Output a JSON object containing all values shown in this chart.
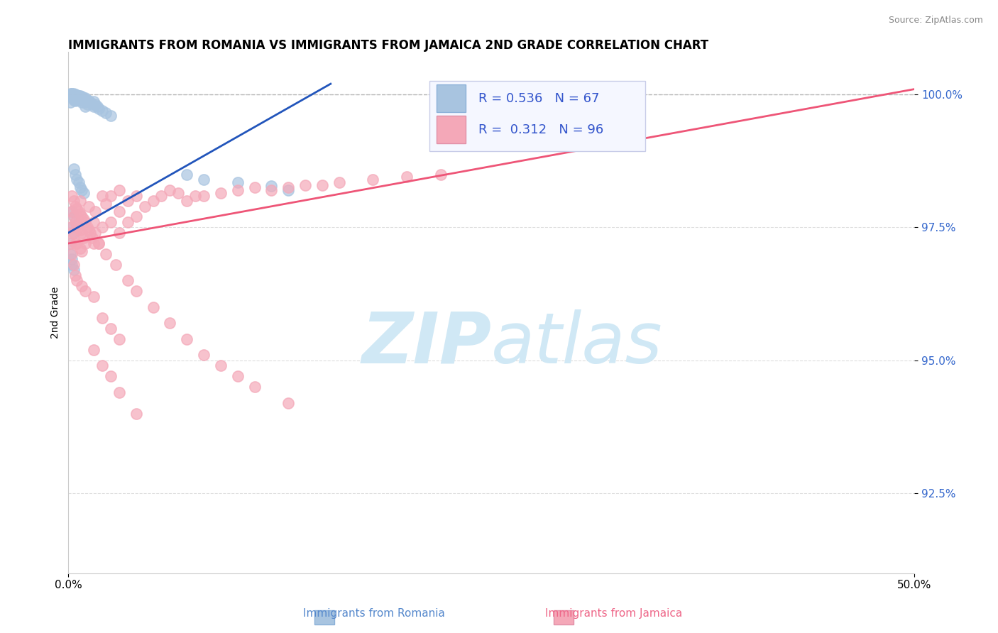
{
  "title": "IMMIGRANTS FROM ROMANIA VS IMMIGRANTS FROM JAMAICA 2ND GRADE CORRELATION CHART",
  "source": "Source: ZipAtlas.com",
  "xlabel_romania": "Immigrants from Romania",
  "xlabel_jamaica": "Immigrants from Jamaica",
  "ylabel": "2nd Grade",
  "xlim": [
    0.0,
    0.5
  ],
  "ylim": [
    0.91,
    1.008
  ],
  "xticks": [
    0.0,
    0.5
  ],
  "xtick_labels": [
    "0.0%",
    "50.0%"
  ],
  "ytick_values": [
    0.925,
    0.95,
    0.975,
    1.0
  ],
  "ytick_labels": [
    "92.5%",
    "95.0%",
    "97.5%",
    "100.0%"
  ],
  "romania_R": 0.536,
  "romania_N": 67,
  "jamaica_R": 0.312,
  "jamaica_N": 96,
  "romania_color": "#a8c4e0",
  "jamaica_color": "#f4a8b8",
  "romania_line_color": "#2255bb",
  "jamaica_line_color": "#ee5577",
  "romania_scatter_x": [
    0.001,
    0.001,
    0.001,
    0.002,
    0.002,
    0.002,
    0.002,
    0.002,
    0.002,
    0.003,
    0.003,
    0.003,
    0.003,
    0.004,
    0.004,
    0.004,
    0.004,
    0.005,
    0.005,
    0.005,
    0.006,
    0.006,
    0.007,
    0.007,
    0.007,
    0.008,
    0.008,
    0.008,
    0.009,
    0.009,
    0.01,
    0.01,
    0.01,
    0.011,
    0.011,
    0.012,
    0.013,
    0.014,
    0.015,
    0.015,
    0.016,
    0.017,
    0.018,
    0.02,
    0.022,
    0.025,
    0.003,
    0.004,
    0.005,
    0.006,
    0.007,
    0.008,
    0.009,
    0.002,
    0.003,
    0.001,
    0.001,
    0.002,
    0.002,
    0.003,
    0.07,
    0.08,
    0.1,
    0.12,
    0.13,
    0.002,
    0.003
  ],
  "romania_scatter_y": [
    1.0002,
    0.9985,
    0.9998,
    1.0001,
    1.0002,
    1.0,
    0.9999,
    0.9997,
    0.9995,
    1.0001,
    0.9998,
    0.9994,
    0.999,
    1.0,
    0.9996,
    0.9992,
    0.9988,
    0.9999,
    0.9995,
    0.999,
    0.9997,
    0.9992,
    0.9998,
    0.9994,
    0.9989,
    0.9996,
    0.9991,
    0.9985,
    0.9994,
    0.9988,
    0.9993,
    0.9985,
    0.9977,
    0.999,
    0.9982,
    0.9988,
    0.9985,
    0.9981,
    0.9987,
    0.9978,
    0.9982,
    0.9978,
    0.9974,
    0.997,
    0.9965,
    0.996,
    0.986,
    0.985,
    0.984,
    0.9835,
    0.9825,
    0.982,
    0.9815,
    0.978,
    0.977,
    0.972,
    0.97,
    0.969,
    0.968,
    0.967,
    0.985,
    0.984,
    0.9835,
    0.9828,
    0.982,
    0.975,
    0.974
  ],
  "jamaica_scatter_x": [
    0.001,
    0.001,
    0.002,
    0.002,
    0.002,
    0.003,
    0.003,
    0.003,
    0.004,
    0.004,
    0.004,
    0.005,
    0.005,
    0.005,
    0.006,
    0.006,
    0.007,
    0.007,
    0.007,
    0.008,
    0.008,
    0.008,
    0.009,
    0.009,
    0.01,
    0.01,
    0.011,
    0.012,
    0.013,
    0.014,
    0.015,
    0.015,
    0.016,
    0.018,
    0.02,
    0.02,
    0.022,
    0.025,
    0.025,
    0.03,
    0.03,
    0.03,
    0.035,
    0.035,
    0.04,
    0.04,
    0.045,
    0.05,
    0.055,
    0.06,
    0.065,
    0.07,
    0.075,
    0.08,
    0.09,
    0.1,
    0.11,
    0.12,
    0.13,
    0.14,
    0.15,
    0.16,
    0.18,
    0.2,
    0.22,
    0.002,
    0.003,
    0.004,
    0.005,
    0.008,
    0.01,
    0.015,
    0.02,
    0.025,
    0.03,
    0.018,
    0.022,
    0.028,
    0.035,
    0.04,
    0.05,
    0.06,
    0.07,
    0.08,
    0.09,
    0.1,
    0.11,
    0.13,
    0.015,
    0.02,
    0.025,
    0.03,
    0.007,
    0.012,
    0.016,
    0.04
  ],
  "jamaica_scatter_y": [
    0.975,
    0.972,
    0.981,
    0.978,
    0.974,
    0.98,
    0.977,
    0.974,
    0.979,
    0.976,
    0.972,
    0.9785,
    0.9755,
    0.972,
    0.978,
    0.975,
    0.9775,
    0.9745,
    0.971,
    0.977,
    0.974,
    0.9705,
    0.9765,
    0.973,
    0.976,
    0.972,
    0.975,
    0.9745,
    0.974,
    0.973,
    0.976,
    0.972,
    0.974,
    0.972,
    0.981,
    0.975,
    0.9795,
    0.981,
    0.976,
    0.982,
    0.978,
    0.974,
    0.98,
    0.976,
    0.981,
    0.977,
    0.979,
    0.98,
    0.981,
    0.982,
    0.9815,
    0.98,
    0.981,
    0.981,
    0.9815,
    0.982,
    0.9825,
    0.982,
    0.9825,
    0.983,
    0.983,
    0.9835,
    0.984,
    0.9845,
    0.985,
    0.97,
    0.968,
    0.966,
    0.965,
    0.964,
    0.963,
    0.962,
    0.958,
    0.956,
    0.954,
    0.972,
    0.97,
    0.968,
    0.965,
    0.963,
    0.96,
    0.957,
    0.954,
    0.951,
    0.949,
    0.947,
    0.945,
    0.942,
    0.952,
    0.949,
    0.947,
    0.944,
    0.98,
    0.979,
    0.978,
    0.94
  ],
  "watermark_zip": "ZIP",
  "watermark_atlas": "atlas",
  "watermark_color": "#d0e8f5",
  "legend_box_color": "#f5f7ff",
  "legend_border_color": "#c8cce8"
}
